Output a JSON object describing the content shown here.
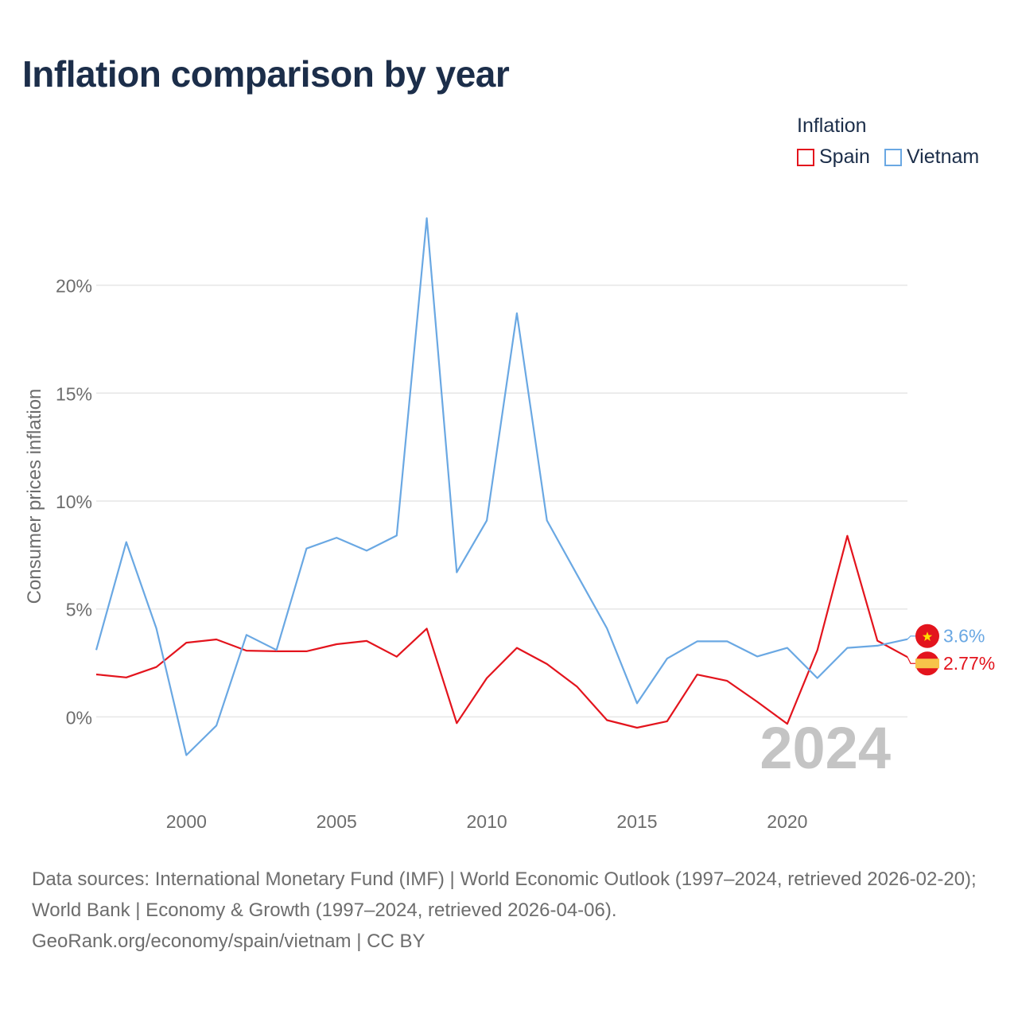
{
  "title": "Inflation comparison by year",
  "legend": {
    "title": "Inflation",
    "items": [
      {
        "label": "Spain",
        "color": "#e3141d"
      },
      {
        "label": "Vietnam",
        "color": "#6aa8e3"
      }
    ]
  },
  "chart_data": {
    "type": "line",
    "title": "Inflation comparison by year",
    "xlabel": "",
    "ylabel": "Consumer prices inflation",
    "xlim": [
      1997,
      2024
    ],
    "ylim": [
      -4,
      24
    ],
    "x_ticks": [
      2000,
      2005,
      2010,
      2015,
      2020
    ],
    "y_ticks": [
      {
        "value": 0,
        "label": "0%"
      },
      {
        "value": 5,
        "label": "5%"
      },
      {
        "value": 10,
        "label": "10%"
      },
      {
        "value": 15,
        "label": "15%"
      },
      {
        "value": 20,
        "label": "20%"
      }
    ],
    "grid": true,
    "x": [
      1997,
      1998,
      1999,
      2000,
      2001,
      2002,
      2003,
      2004,
      2005,
      2006,
      2007,
      2008,
      2009,
      2010,
      2011,
      2012,
      2013,
      2014,
      2015,
      2016,
      2017,
      2018,
      2019,
      2020,
      2021,
      2022,
      2023,
      2024
    ],
    "series": [
      {
        "name": "Spain",
        "color": "#e3141d",
        "values": [
          1.97,
          1.83,
          2.31,
          3.44,
          3.59,
          3.07,
          3.04,
          3.04,
          3.37,
          3.52,
          2.79,
          4.09,
          -0.29,
          1.8,
          3.2,
          2.45,
          1.41,
          -0.15,
          -0.5,
          -0.2,
          1.96,
          1.67,
          0.7,
          -0.32,
          3.09,
          8.39,
          3.53,
          2.77
        ],
        "end_label": "2.77%"
      },
      {
        "name": "Vietnam",
        "color": "#6aa8e3",
        "values": [
          3.1,
          8.1,
          4.1,
          -1.77,
          -0.4,
          3.8,
          3.1,
          7.8,
          8.3,
          7.7,
          8.4,
          23.1,
          6.7,
          9.1,
          18.7,
          9.1,
          6.6,
          4.1,
          0.63,
          2.7,
          3.5,
          3.5,
          2.8,
          3.2,
          1.8,
          3.2,
          3.3,
          3.6
        ],
        "end_label": "3.6%"
      }
    ],
    "year_watermark": "2024"
  },
  "sources": {
    "line1": "Data sources: International Monetary Fund (IMF) | World Economic Outlook (1997–2024, retrieved 2026-02-20); World Bank | Economy & Growth (1997–2024, retrieved 2026-04-06).",
    "line2": "GeoRank.org/economy/spain/vietnam | CC BY"
  }
}
